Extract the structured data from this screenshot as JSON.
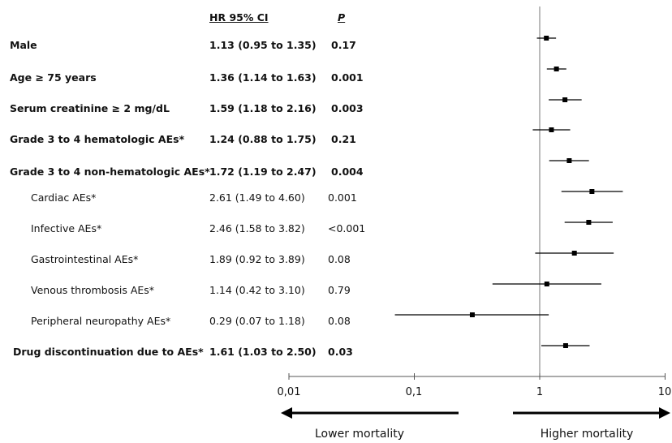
{
  "headers": {
    "hr": "HR 95% CI",
    "p": "P"
  },
  "rows": [
    {
      "label": "Male",
      "ci_text": "1.13 (0.95 to 1.35)",
      "p": "0.17",
      "bold": true,
      "indent": false
    },
    {
      "label": "Age ≥ 75 years",
      "ci_text": "1.36 (1.14 to 1.63)",
      "p": "0.001",
      "bold": true,
      "indent": false
    },
    {
      "label": "Serum creatinine ≥ 2 mg/dL",
      "ci_text": "1.59 (1.18 to 2.16)",
      "p": "0.003",
      "bold": true,
      "indent": false
    },
    {
      "label": "Grade 3 to 4 hematologic AEs*",
      "ci_text": "1.24 (0.88 to 1.75)",
      "p": "0.21",
      "bold": true,
      "indent": false
    },
    {
      "label": "Grade 3 to 4 non-hematologic AEs*",
      "ci_text": "1.72 (1.19 to 2.47)",
      "p": "0.004",
      "bold": true,
      "indent": false
    },
    {
      "label": "Cardiac AEs*",
      "ci_text": "2.61 (1.49 to 4.60)",
      "p": "0.001",
      "bold": false,
      "indent": true
    },
    {
      "label": "Infective AEs*",
      "ci_text": "2.46 (1.58 to 3.82)",
      "p": "<0.001",
      "bold": false,
      "indent": true
    },
    {
      "label": "Gastrointestinal AEs*",
      "ci_text": "1.89 (0.92 to 3.89)",
      "p": "0.08",
      "bold": false,
      "indent": true
    },
    {
      "label": "Venous thrombosis AEs*",
      "ci_text": "1.14 (0.42 to 3.10)",
      "p": "0.79",
      "bold": false,
      "indent": true
    },
    {
      "label": "Peripheral neuropathy AEs*",
      "ci_text": "0.29 (0.07 to 1.18)",
      "p": "0.08",
      "bold": false,
      "indent": true
    },
    {
      "label": "Drug discontinuation due to AEs*",
      "ci_text": "1.61 (1.03 to 2.50)",
      "p": "0.03",
      "bold": true,
      "indent": false
    }
  ],
  "axis": {
    "tick_labels": [
      "0,01",
      "0,1",
      "1",
      "10"
    ]
  },
  "direction": {
    "left": "Lower mortality",
    "right": "Higher mortality"
  },
  "chart_data": {
    "type": "forest",
    "scale": "log",
    "xlim": [
      0.01,
      10
    ],
    "reference_line": 1,
    "categories": [
      "Male",
      "Age ≥ 75 years",
      "Serum creatinine ≥ 2 mg/dL",
      "Grade 3 to 4 hematologic AEs*",
      "Grade 3 to 4 non-hematologic AEs*",
      "Cardiac AEs*",
      "Infective AEs*",
      "Gastrointestinal AEs*",
      "Venous thrombosis AEs*",
      "Peripheral neuropathy AEs*",
      "Drug discontinuation due to AEs*"
    ],
    "hr": [
      1.13,
      1.36,
      1.59,
      1.24,
      1.72,
      2.61,
      2.46,
      1.89,
      1.14,
      0.29,
      1.61
    ],
    "lower": [
      0.95,
      1.14,
      1.18,
      0.88,
      1.19,
      1.49,
      1.58,
      0.92,
      0.42,
      0.07,
      1.03
    ],
    "upper": [
      1.35,
      1.63,
      2.16,
      1.75,
      2.47,
      4.6,
      3.82,
      3.89,
      3.1,
      1.18,
      2.5
    ]
  }
}
